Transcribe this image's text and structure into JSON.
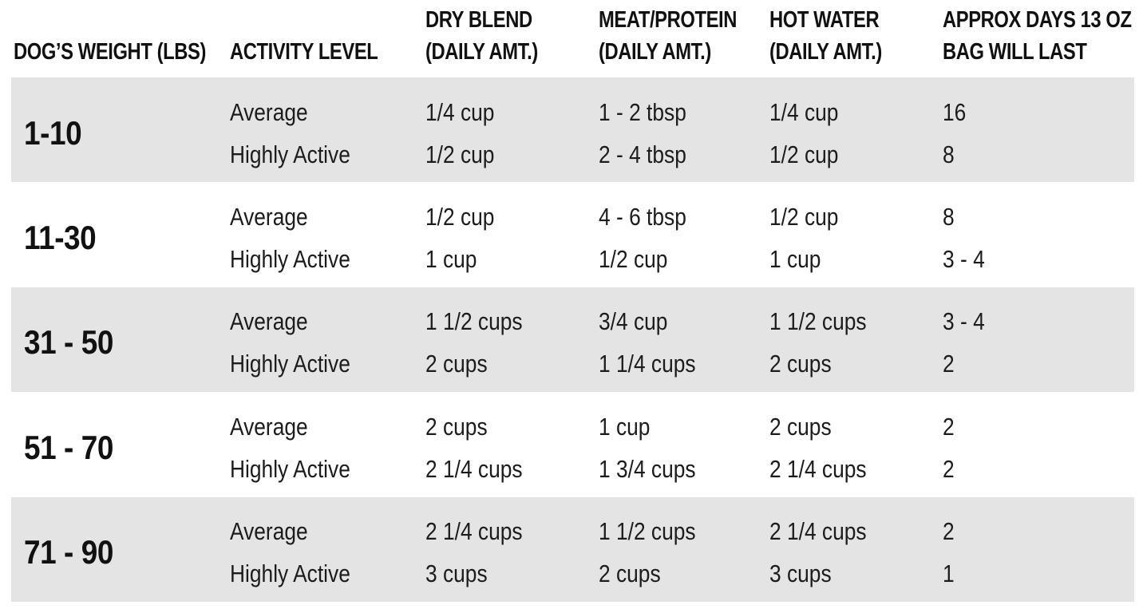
{
  "chart_data": {
    "type": "table",
    "columns": [
      {
        "label": "DOG’S WEIGHT (LBS)",
        "lines": [
          "DOG’S WEIGHT (LBS)"
        ]
      },
      {
        "label": "ACTIVITY LEVEL",
        "lines": [
          "ACTIVITY LEVEL"
        ]
      },
      {
        "label": "DRY BLEND (DAILY AMT.)",
        "lines": [
          "DRY BLEND",
          "(DAILY AMT.)"
        ]
      },
      {
        "label": "MEAT/PROTEIN (DAILY AMT.)",
        "lines": [
          "MEAT/PROTEIN",
          "(DAILY AMT.)"
        ]
      },
      {
        "label": "HOT WATER (DAILY AMT.)",
        "lines": [
          "HOT WATER",
          "(DAILY AMT.)"
        ]
      },
      {
        "label": "APPROX DAYS 13 OZ BAG WILL LAST",
        "lines": [
          "APPROX DAYS 13 OZ",
          "BAG WILL LAST"
        ]
      }
    ],
    "groups": [
      {
        "weight": "1-10",
        "shaded": true,
        "rows": [
          {
            "activity": "Average",
            "dry_blend": "1/4 cup",
            "meat_protein": "1 - 2 tbsp",
            "hot_water": "1/4 cup",
            "days_bag_lasts": "16"
          },
          {
            "activity": "Highly Active",
            "dry_blend": "1/2 cup",
            "meat_protein": "2 - 4 tbsp",
            "hot_water": "1/2 cup",
            "days_bag_lasts": "8"
          }
        ]
      },
      {
        "weight": "11-30",
        "shaded": false,
        "rows": [
          {
            "activity": "Average",
            "dry_blend": "1/2 cup",
            "meat_protein": "4 - 6 tbsp",
            "hot_water": "1/2 cup",
            "days_bag_lasts": "8"
          },
          {
            "activity": "Highly Active",
            "dry_blend": "1 cup",
            "meat_protein": "1/2 cup",
            "hot_water": "1 cup",
            "days_bag_lasts": "3 - 4"
          }
        ]
      },
      {
        "weight": "31 - 50",
        "shaded": true,
        "rows": [
          {
            "activity": "Average",
            "dry_blend": "1 1/2 cups",
            "meat_protein": "3/4 cup",
            "hot_water": "1 1/2 cups",
            "days_bag_lasts": "3 - 4"
          },
          {
            "activity": "Highly Active",
            "dry_blend": "2 cups",
            "meat_protein": "1 1/4 cups",
            "hot_water": "2 cups",
            "days_bag_lasts": "2"
          }
        ]
      },
      {
        "weight": "51 - 70",
        "shaded": false,
        "rows": [
          {
            "activity": "Average",
            "dry_blend": "2 cups",
            "meat_protein": "1 cup",
            "hot_water": "2 cups",
            "days_bag_lasts": "2"
          },
          {
            "activity": "Highly Active",
            "dry_blend": "2 1/4 cups",
            "meat_protein": "1 3/4 cups",
            "hot_water": "2 1/4 cups",
            "days_bag_lasts": "2"
          }
        ]
      },
      {
        "weight": "71 - 90",
        "shaded": true,
        "rows": [
          {
            "activity": "Average",
            "dry_blend": "2 1/4 cups",
            "meat_protein": "1 1/2 cups",
            "hot_water": "2 1/4 cups",
            "days_bag_lasts": "2"
          },
          {
            "activity": "Highly Active",
            "dry_blend": "3 cups",
            "meat_protein": "2 cups",
            "hot_water": "3 cups",
            "days_bag_lasts": "1"
          }
        ]
      }
    ],
    "colors": {
      "row_band_shaded": "#e5e4e4",
      "row_band_plain": "#ffffff",
      "text": "#151515"
    },
    "layout_hints": {
      "grid": "off",
      "banding": "alternating gray starting with first group"
    }
  }
}
